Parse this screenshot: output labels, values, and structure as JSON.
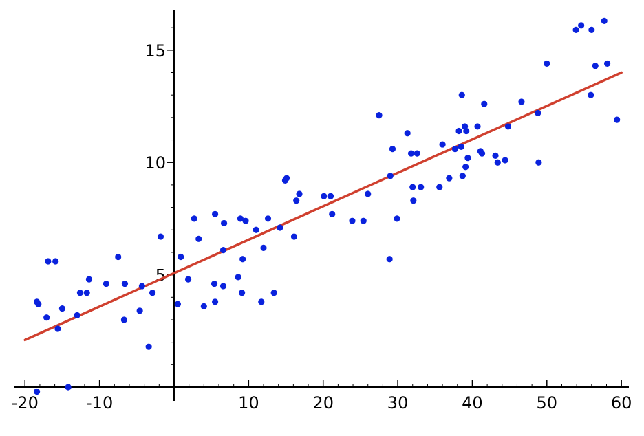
{
  "chart_data": {
    "type": "scatter",
    "xlim": [
      -21.5,
      61
    ],
    "ylim": [
      0,
      16.8
    ],
    "grid": false,
    "x_ticks": [
      -20,
      -10,
      10,
      20,
      30,
      40,
      50,
      60
    ],
    "x_tick_labels": [
      "-20",
      "-10",
      "10",
      "20",
      "30",
      "40",
      "50",
      "60"
    ],
    "y_ticks": [
      5,
      10,
      15
    ],
    "y_tick_labels": [
      "5",
      "10",
      "15"
    ],
    "y_minor_step": 1,
    "colors": {
      "points": "#0a22dd",
      "line": "#d0402f",
      "axes": "#000000"
    },
    "series": [
      {
        "kind": "points",
        "x": [
          -18.4,
          -18.2,
          -18.4,
          -17.1,
          -16.9,
          -15.9,
          -15.6,
          -15.0,
          -14.2,
          -13.0,
          -12.6,
          -11.7,
          -11.4,
          -9.1,
          -7.5,
          -6.7,
          -6.6,
          -4.6,
          -4.3,
          -3.4,
          -2.9,
          -1.8,
          0.5,
          0.9,
          1.9,
          2.7,
          3.3,
          4.0,
          5.4,
          5.5,
          5.5,
          6.6,
          6.6,
          6.7,
          8.6,
          8.9,
          9.1,
          9.2,
          9.6,
          11.0,
          11.7,
          12.0,
          12.6,
          13.4,
          14.2,
          14.9,
          15.1,
          16.1,
          16.4,
          16.8,
          20.1,
          21.0,
          21.2,
          23.9,
          25.4,
          26.0,
          27.5,
          28.9,
          29.0,
          29.3,
          29.9,
          31.3,
          31.8,
          32.0,
          32.1,
          32.6,
          33.1,
          35.6,
          36.0,
          36.9,
          37.7,
          38.2,
          38.5,
          38.6,
          38.7,
          39.0,
          39.1,
          39.2,
          39.4,
          40.7,
          41.1,
          41.3,
          41.6,
          43.1,
          43.4,
          44.4,
          44.8,
          46.6,
          48.8,
          48.9,
          50.0,
          53.9,
          54.6,
          55.9,
          56.0,
          56.5,
          57.7,
          58.1,
          59.4
        ],
        "y": [
          -0.2,
          3.7,
          3.8,
          3.1,
          5.6,
          5.6,
          2.6,
          3.5,
          0.0,
          3.2,
          4.2,
          4.2,
          4.8,
          4.6,
          5.8,
          3.0,
          4.6,
          3.4,
          4.5,
          1.8,
          4.2,
          6.7,
          3.7,
          5.8,
          4.8,
          7.5,
          6.6,
          3.6,
          4.6,
          3.8,
          7.7,
          4.5,
          6.1,
          7.3,
          4.9,
          7.5,
          4.2,
          5.7,
          7.4,
          7.0,
          3.8,
          6.2,
          7.5,
          4.2,
          7.1,
          9.2,
          9.3,
          6.7,
          8.3,
          8.6,
          8.5,
          8.5,
          7.7,
          7.4,
          7.4,
          8.6,
          12.1,
          5.7,
          9.4,
          10.6,
          7.5,
          11.3,
          10.4,
          8.9,
          8.3,
          10.4,
          8.9,
          8.9,
          10.8,
          9.3,
          10.6,
          11.4,
          10.7,
          13.0,
          9.4,
          11.6,
          9.8,
          11.4,
          10.2,
          11.6,
          10.5,
          10.4,
          12.6,
          10.3,
          10.0,
          10.1,
          11.6,
          12.7,
          12.2,
          10.0,
          14.4,
          15.9,
          16.1,
          13.0,
          15.9,
          14.3,
          16.3,
          14.4,
          11.9
        ]
      },
      {
        "kind": "fitted-line",
        "x": [
          -20,
          60
        ],
        "y": [
          2.1,
          14.0
        ]
      }
    ]
  }
}
